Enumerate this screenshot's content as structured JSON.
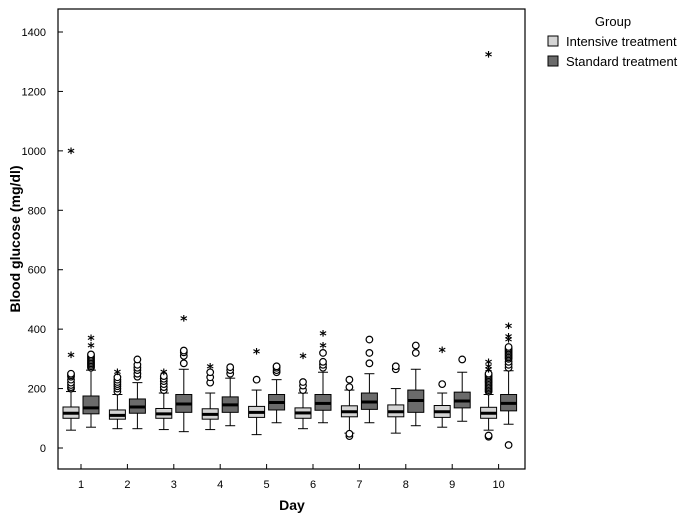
{
  "colors": {
    "intensive": "#d4d4d4",
    "standard": "#6b6b6b",
    "line": "#000000",
    "background": "#ffffff"
  },
  "chart_data": {
    "type": "boxplot",
    "xlabel": "Day",
    "ylabel": "Blood glucose (mg/dl)",
    "ylim": [
      -30,
      1480
    ],
    "yticks": [
      0,
      200,
      400,
      600,
      800,
      1000,
      1200,
      1400
    ],
    "categories": [
      "1",
      "2",
      "3",
      "4",
      "5",
      "6",
      "7",
      "8",
      "9",
      "10"
    ],
    "grid": false,
    "legend": {
      "title": "Group",
      "position": "top-right-outside",
      "entries": [
        "Intensive treatment",
        "Standard treatment"
      ]
    },
    "series": [
      {
        "name": "Intensive treatment",
        "color": "#d4d4d4",
        "boxes": [
          {
            "whisker_low": 60,
            "q1": 100,
            "median": 117,
            "q3": 138,
            "whisker_high": 190,
            "outliers": [
              200,
              205,
              212,
              220,
              230,
              240,
              245,
              250
            ],
            "extremes": [
              313,
              1000
            ]
          },
          {
            "whisker_low": 65,
            "q1": 97,
            "median": 110,
            "q3": 128,
            "whisker_high": 180,
            "outliers": [
              190,
              200,
              208,
              215,
              222,
              230,
              238
            ],
            "extremes": [
              255
            ]
          },
          {
            "whisker_low": 62,
            "q1": 100,
            "median": 115,
            "q3": 133,
            "whisker_high": 185,
            "outliers": [
              195,
              205,
              215,
              225,
              233,
              242
            ],
            "extremes": [
              255
            ]
          },
          {
            "whisker_low": 62,
            "q1": 97,
            "median": 113,
            "q3": 132,
            "whisker_high": 185,
            "outliers": [
              220,
              238,
              255
            ],
            "extremes": [
              275
            ]
          },
          {
            "whisker_low": 45,
            "q1": 103,
            "median": 120,
            "q3": 140,
            "whisker_high": 195,
            "outliers": [
              230
            ],
            "extremes": [
              325
            ]
          },
          {
            "whisker_low": 65,
            "q1": 100,
            "median": 118,
            "q3": 135,
            "whisker_high": 185,
            "outliers": [
              195,
              210,
              222
            ],
            "extremes": [
              310
            ]
          },
          {
            "whisker_low": 50,
            "q1": 105,
            "median": 122,
            "q3": 142,
            "whisker_high": 195,
            "outliers": [
              40,
              48,
              205,
              230
            ],
            "extremes": []
          },
          {
            "whisker_low": 50,
            "q1": 105,
            "median": 122,
            "q3": 145,
            "whisker_high": 200,
            "outliers": [
              265,
              275
            ],
            "extremes": []
          },
          {
            "whisker_low": 70,
            "q1": 103,
            "median": 122,
            "q3": 143,
            "whisker_high": 185,
            "outliers": [
              215
            ],
            "extremes": [
              330
            ]
          },
          {
            "whisker_low": 60,
            "q1": 100,
            "median": 117,
            "q3": 137,
            "whisker_high": 180,
            "outliers": [
              38,
              42,
              190,
              195,
              200,
              205,
              210,
              215,
              220,
              225,
              230,
              235,
              240,
              245,
              250
            ],
            "extremes": [
              265,
              275,
              290,
              1325
            ]
          }
        ]
      },
      {
        "name": "Standard treatment",
        "color": "#6b6b6b",
        "boxes": [
          {
            "whisker_low": 70,
            "q1": 115,
            "median": 135,
            "q3": 175,
            "whisker_high": 262,
            "outliers": [
              270,
              275,
              280,
              285,
              290,
              295,
              300,
              305,
              310,
              315
            ],
            "extremes": [
              345,
              370
            ]
          },
          {
            "whisker_low": 65,
            "q1": 117,
            "median": 138,
            "q3": 165,
            "whisker_high": 220,
            "outliers": [
              240,
              250,
              262,
              270,
              280,
              298
            ],
            "extremes": []
          },
          {
            "whisker_low": 55,
            "q1": 120,
            "median": 148,
            "q3": 180,
            "whisker_high": 265,
            "outliers": [
              285,
              310,
              322,
              328
            ],
            "extremes": [
              435
            ]
          },
          {
            "whisker_low": 75,
            "q1": 120,
            "median": 145,
            "q3": 172,
            "whisker_high": 235,
            "outliers": [
              250,
              262,
              272
            ],
            "extremes": []
          },
          {
            "whisker_low": 85,
            "q1": 128,
            "median": 153,
            "q3": 180,
            "whisker_high": 230,
            "outliers": [
              255,
              262,
              270,
              275
            ],
            "extremes": []
          },
          {
            "whisker_low": 85,
            "q1": 127,
            "median": 150,
            "q3": 180,
            "whisker_high": 255,
            "outliers": [
              270,
              280,
              290,
              320
            ],
            "extremes": [
              345,
              385
            ]
          },
          {
            "whisker_low": 85,
            "q1": 130,
            "median": 155,
            "q3": 185,
            "whisker_high": 250,
            "outliers": [
              285,
              320,
              365
            ],
            "extremes": []
          },
          {
            "whisker_low": 75,
            "q1": 120,
            "median": 160,
            "q3": 195,
            "whisker_high": 265,
            "outliers": [
              320,
              345
            ],
            "extremes": []
          },
          {
            "whisker_low": 90,
            "q1": 135,
            "median": 158,
            "q3": 188,
            "whisker_high": 255,
            "outliers": [
              298
            ],
            "extremes": []
          },
          {
            "whisker_low": 80,
            "q1": 125,
            "median": 150,
            "q3": 180,
            "whisker_high": 260,
            "outliers": [
              10,
              270,
              280,
              290,
              300,
              305,
              310,
              315,
              320,
              325,
              330,
              335,
              340
            ],
            "extremes": [
              365,
              375,
              410
            ]
          }
        ]
      }
    ]
  }
}
